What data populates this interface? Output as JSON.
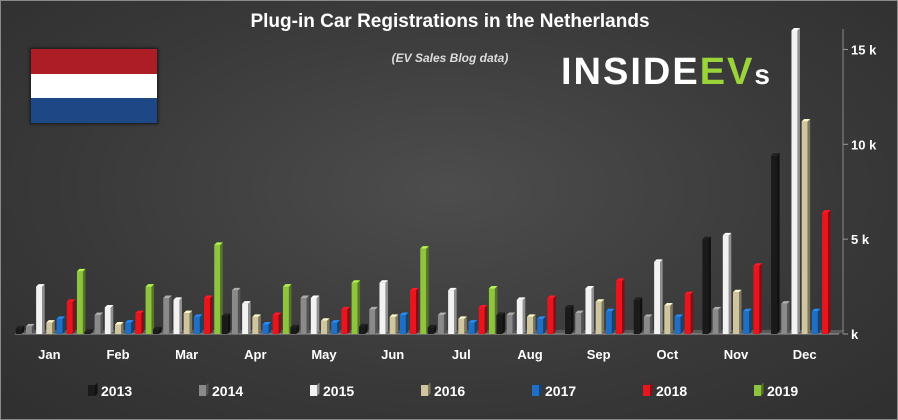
{
  "chart_data": {
    "type": "bar",
    "title": "Plug-in Car Registrations in the Netherlands",
    "subtitle": "(EV Sales Blog data)",
    "categories": [
      "Jan",
      "Feb",
      "Mar",
      "Apr",
      "May",
      "Jun",
      "Jul",
      "Aug",
      "Sep",
      "Oct",
      "Nov",
      "Dec"
    ],
    "ylim": [
      0,
      16500
    ],
    "yticks": [
      0,
      5000,
      10000,
      15000
    ],
    "ytick_labels": [
      "k",
      "5 k",
      "10 k",
      "15 k"
    ],
    "grid": false,
    "legend_position": "bottom",
    "series": [
      {
        "name": "2013",
        "color": "#1a1a1a",
        "values": [
          300,
          120,
          250,
          950,
          350,
          400,
          350,
          1000,
          1400,
          1800,
          5000,
          9400
        ]
      },
      {
        "name": "2014",
        "color": "#8a8a8a",
        "values": [
          400,
          1000,
          1900,
          2300,
          1900,
          1300,
          1000,
          1000,
          1100,
          900,
          1300,
          1600
        ]
      },
      {
        "name": "2015",
        "color": "#f2f2f2",
        "values": [
          2500,
          1400,
          1800,
          1600,
          1900,
          2700,
          2300,
          1800,
          2400,
          3800,
          5200,
          16000
        ]
      },
      {
        "name": "2016",
        "color": "#cfc6a0",
        "values": [
          600,
          500,
          1100,
          900,
          700,
          900,
          800,
          900,
          1700,
          1500,
          2200,
          11200
        ]
      },
      {
        "name": "2017",
        "color": "#1f6fc4",
        "values": [
          800,
          600,
          900,
          500,
          600,
          1000,
          600,
          800,
          1200,
          900,
          1200,
          1200
        ]
      },
      {
        "name": "2018",
        "color": "#e8141e",
        "values": [
          1700,
          1100,
          1900,
          1000,
          1300,
          2300,
          1400,
          1900,
          2800,
          2100,
          3600,
          6400
        ]
      },
      {
        "name": "2019",
        "color": "#8fc43e",
        "values": [
          3300,
          2500,
          4700,
          2500,
          2700,
          4500,
          2400,
          null,
          null,
          null,
          null,
          null
        ]
      }
    ]
  },
  "logo": {
    "main": "INSIDE",
    "accent": "EV",
    "tail": "s"
  }
}
